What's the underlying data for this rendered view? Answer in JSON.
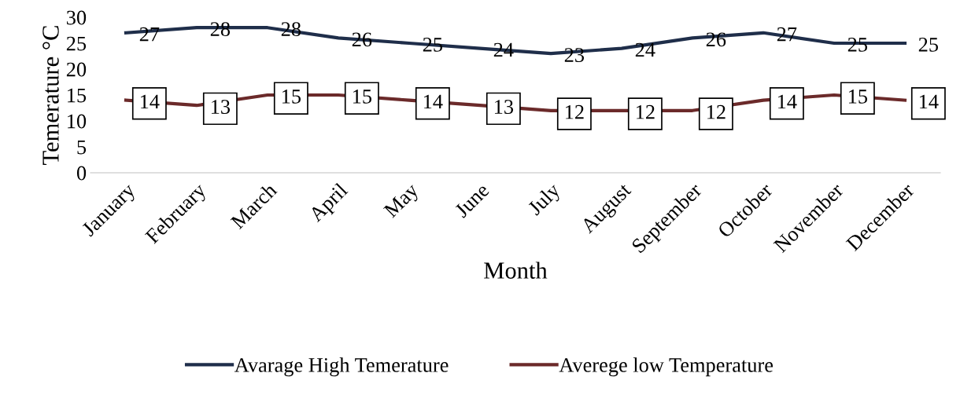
{
  "chart_data": {
    "type": "line",
    "xlabel": "Month",
    "ylabel": "Temerature °C",
    "categories": [
      "January",
      "February",
      "March",
      "April",
      "May",
      "June",
      "July",
      "August",
      "September",
      "October",
      "November",
      "December"
    ],
    "series": [
      {
        "name": "Avarage High Temerature",
        "color": "#1f2e4a",
        "values": [
          27,
          28,
          28,
          26,
          25,
          24,
          23,
          24,
          26,
          27,
          25,
          25
        ]
      },
      {
        "name": "Averege low Temperature",
        "color": "#6b2a2a",
        "values": [
          14,
          13,
          15,
          15,
          14,
          13,
          12,
          12,
          12,
          14,
          15,
          14
        ]
      }
    ],
    "ylim": [
      0,
      30
    ],
    "yticks": [
      0,
      5,
      10,
      15,
      20,
      25,
      30
    ],
    "grid": false,
    "legend": "bottom",
    "data_labels": true,
    "marker": "none",
    "line_style": "solid"
  }
}
